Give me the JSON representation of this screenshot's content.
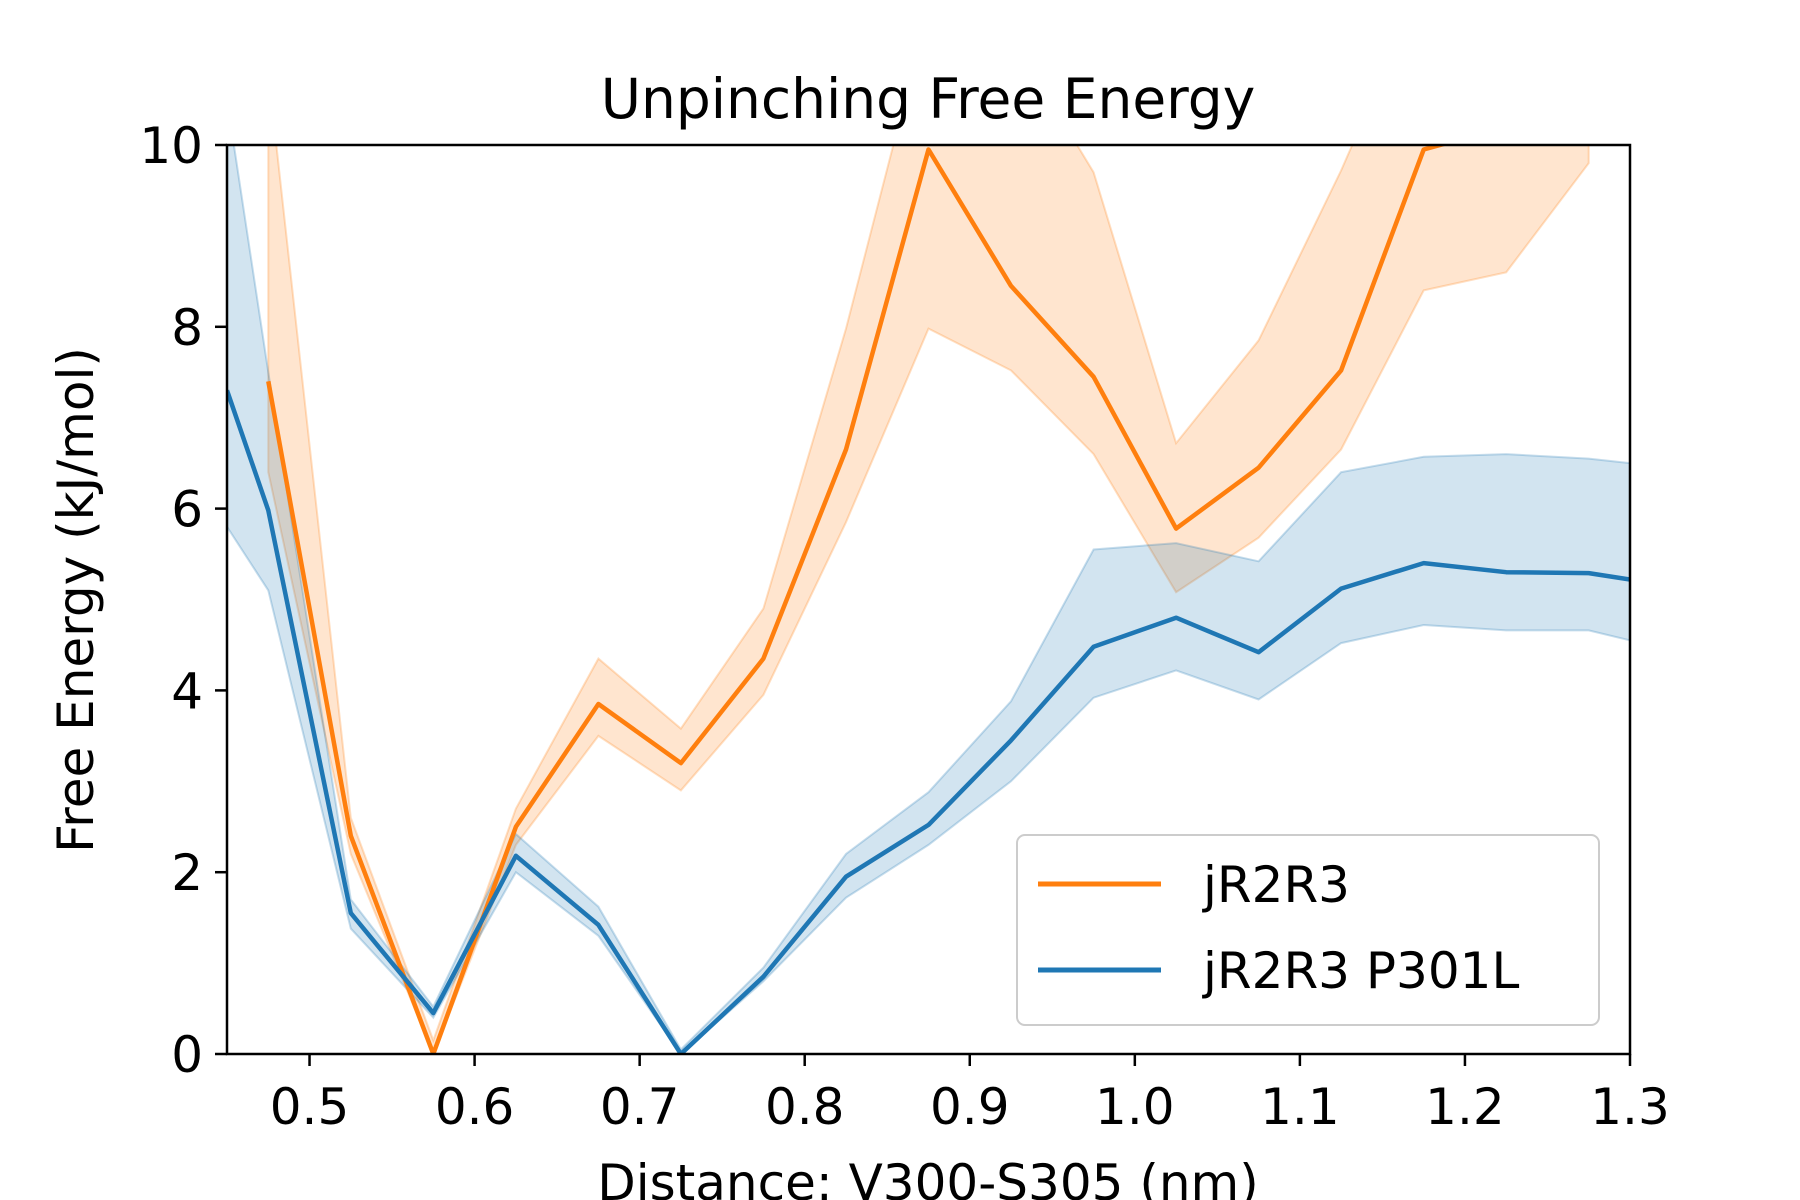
{
  "chart_data": {
    "type": "line",
    "title": "Unpinching Free Energy",
    "xlabel": "Distance: V300-S305 (nm)",
    "ylabel": "Free Energy (kJ/mol)",
    "xlim": [
      0.45,
      1.3
    ],
    "ylim": [
      0,
      10
    ],
    "xticks": [
      0.5,
      0.6,
      0.7,
      0.8,
      0.9,
      1.0,
      1.1,
      1.2,
      1.3
    ],
    "xtick_labels": [
      "0.5",
      "0.6",
      "0.7",
      "0.8",
      "0.9",
      "1.0",
      "1.1",
      "1.2",
      "1.3"
    ],
    "yticks": [
      0,
      2,
      4,
      6,
      8,
      10
    ],
    "ytick_labels": [
      "0",
      "2",
      "4",
      "6",
      "8",
      "10"
    ],
    "grid": false,
    "legend_position": "lower-right",
    "series": [
      {
        "name": "jR2R3",
        "color": "#ff7f0e",
        "x": [
          0.475,
          0.525,
          0.575,
          0.625,
          0.675,
          0.725,
          0.775,
          0.825,
          0.875,
          0.925,
          0.975,
          1.025,
          1.075,
          1.125,
          1.175,
          1.225,
          1.275
        ],
        "y": [
          7.4,
          2.4,
          0.0,
          2.5,
          3.85,
          3.2,
          4.35,
          6.65,
          9.95,
          8.45,
          7.45,
          5.78,
          6.45,
          7.52,
          9.95,
          10.2,
          10.8
        ],
        "lower": [
          6.4,
          2.2,
          0.0,
          2.3,
          3.5,
          2.9,
          3.95,
          5.85,
          7.98,
          7.52,
          6.6,
          5.08,
          5.68,
          6.65,
          8.4,
          8.6,
          9.8
        ],
        "upper": [
          10.8,
          2.6,
          0.15,
          2.7,
          4.35,
          3.58,
          4.9,
          7.98,
          11.5,
          11.2,
          9.7,
          6.72,
          7.85,
          9.72,
          11.8,
          11.8,
          12.0
        ]
      },
      {
        "name": "jR2R3 P301L",
        "color": "#1f77b4",
        "x": [
          0.45,
          0.475,
          0.525,
          0.575,
          0.625,
          0.675,
          0.725,
          0.775,
          0.825,
          0.875,
          0.925,
          0.975,
          1.025,
          1.075,
          1.125,
          1.175,
          1.225,
          1.275,
          1.3
        ],
        "y": [
          7.3,
          5.98,
          1.55,
          0.45,
          2.18,
          1.42,
          0.0,
          0.85,
          1.95,
          2.52,
          3.45,
          4.48,
          4.8,
          4.42,
          5.12,
          5.4,
          5.3,
          5.29,
          5.22
        ],
        "lower": [
          5.8,
          5.1,
          1.38,
          0.4,
          2.0,
          1.3,
          0.0,
          0.8,
          1.72,
          2.3,
          3.0,
          3.92,
          4.22,
          3.9,
          4.52,
          4.72,
          4.66,
          4.66,
          4.55
        ],
        "upper": [
          10.5,
          7.5,
          1.7,
          0.52,
          2.42,
          1.62,
          0.05,
          0.95,
          2.2,
          2.88,
          3.88,
          5.55,
          5.62,
          5.42,
          6.4,
          6.57,
          6.6,
          6.55,
          6.5
        ]
      }
    ]
  }
}
